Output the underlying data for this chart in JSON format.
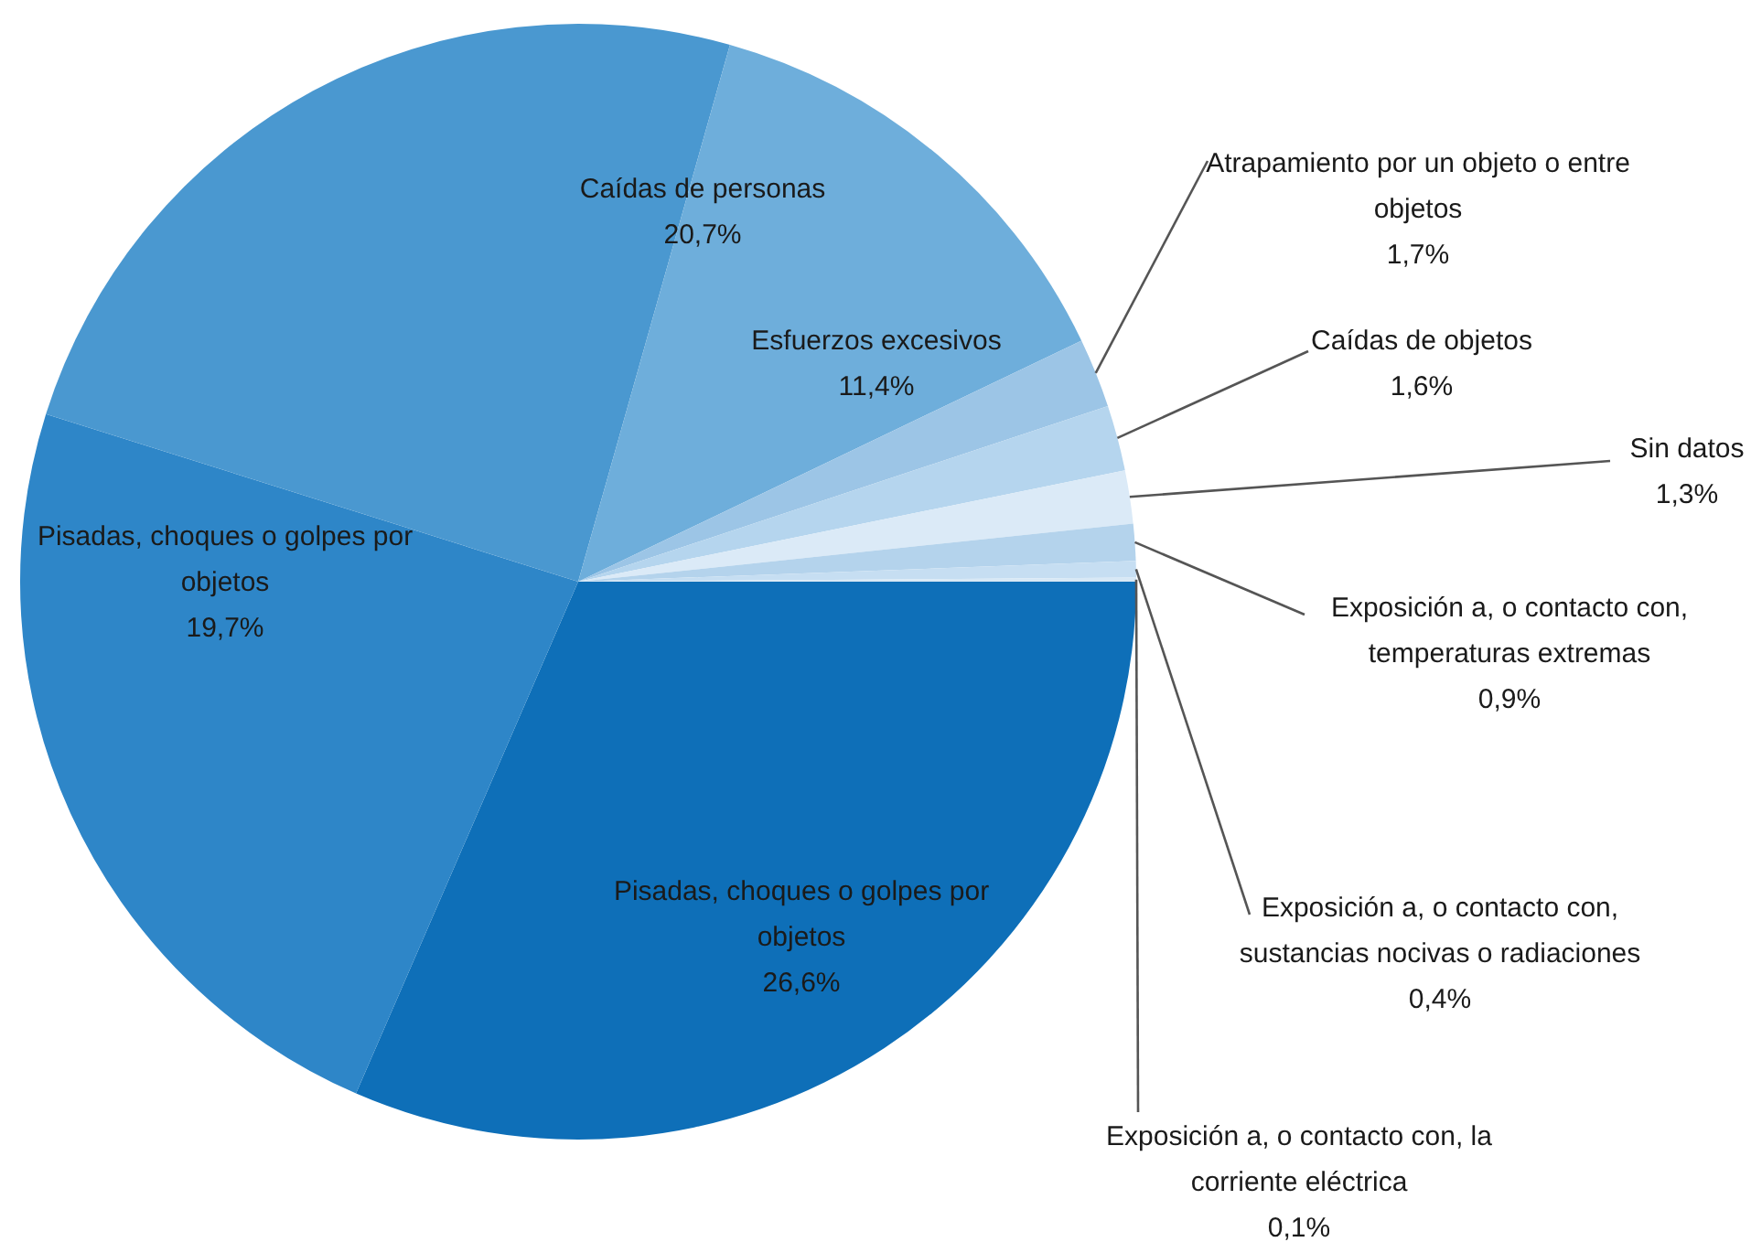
{
  "chart_data": {
    "type": "pie",
    "categories": [
      "Pisadas, choques o golpes por objetos",
      "Pisadas, choques o golpes por objetos",
      "Caídas de personas",
      "Esfuerzos excesivos",
      "Atrapamiento por un objeto o entre objetos",
      "Caídas de objetos",
      "Sin datos",
      "Exposición a, o contacto con, temperaturas extremas",
      "Exposición a, o contacto con, sustancias nocivas o radiaciones",
      "Exposición a, o contacto con, la corriente eléctrica"
    ],
    "values": [
      26.6,
      19.7,
      20.7,
      11.4,
      1.7,
      1.6,
      1.3,
      0.9,
      0.4,
      0.1
    ],
    "value_labels": [
      "26,6%",
      "19,7%",
      "20,7%",
      "11,4%",
      "1,7%",
      "1,6%",
      "1,3%",
      "0,9%",
      "0,4%",
      "0,1%"
    ],
    "colors": [
      "#0e6fb8",
      "#2e86c8",
      "#4a98d0",
      "#6eaedb",
      "#9cc5e6",
      "#b5d5ee",
      "#dbeaf7",
      "#b4d3ec",
      "#c6def2",
      "#d8e8f5"
    ],
    "legend": false
  }
}
